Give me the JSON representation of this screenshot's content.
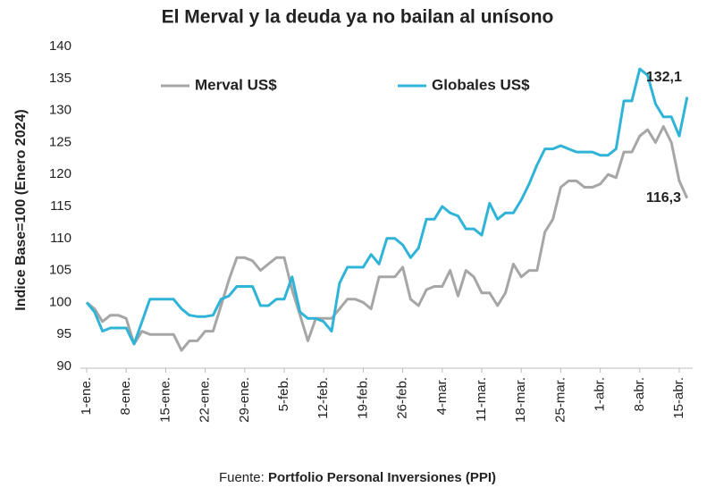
{
  "chart_data": {
    "type": "line",
    "title": "El Merval y la deuda ya no bailan al unísono",
    "y_label": "Indice Base=100 (Enero 2024)",
    "source_prefix": "Fuente:",
    "source": "Portfolio Personal Inversiones (PPI)",
    "categories": [
      "1-ene.",
      null,
      null,
      null,
      null,
      "8-ene.",
      null,
      null,
      null,
      null,
      "15-ene.",
      null,
      null,
      null,
      null,
      "22-ene.",
      null,
      null,
      null,
      null,
      "29-ene.",
      null,
      null,
      null,
      null,
      "5-feb.",
      null,
      null,
      null,
      null,
      "12-feb.",
      null,
      null,
      null,
      null,
      "19-feb.",
      null,
      null,
      null,
      null,
      "26-feb.",
      null,
      null,
      null,
      null,
      "4-mar.",
      null,
      null,
      null,
      null,
      "11-mar.",
      null,
      null,
      null,
      null,
      "18-mar.",
      null,
      null,
      null,
      null,
      "25-mar.",
      null,
      null,
      null,
      null,
      "1-abr.",
      null,
      null,
      null,
      null,
      "8-abr.",
      null,
      null,
      null,
      null,
      "15-abr.",
      null
    ],
    "series": [
      {
        "name": "Merval US$",
        "color": "#a6a6a6",
        "values": [
          100,
          99,
          97,
          98,
          98,
          97.5,
          93.5,
          95.5,
          95,
          95,
          95,
          95,
          92.5,
          94,
          94,
          95.5,
          95.5,
          99.5,
          103.5,
          107,
          107,
          106.5,
          105,
          106,
          107,
          107,
          102,
          98,
          94,
          97.5,
          97.5,
          97.5,
          99,
          100.5,
          100.5,
          100,
          99,
          104,
          104,
          104,
          105.5,
          100.5,
          99.5,
          102,
          102.5,
          102.5,
          105,
          101,
          105,
          104,
          101.5,
          101.5,
          99.5,
          101.5,
          106,
          104,
          105,
          105,
          111,
          113,
          118,
          119,
          119,
          118,
          118,
          118.5,
          120,
          119.5,
          123.5,
          123.5,
          126,
          127,
          125,
          127.5,
          125,
          119,
          116.3
        ],
        "value_labels": [
          null,
          null,
          null,
          null,
          null,
          null,
          null,
          null,
          null,
          null,
          null,
          null,
          null,
          null,
          null,
          null,
          null,
          null,
          null,
          null,
          null,
          null,
          null,
          null,
          null,
          null,
          null,
          null,
          null,
          null,
          null,
          null,
          null,
          null,
          null,
          null,
          null,
          null,
          null,
          null,
          null,
          null,
          null,
          null,
          null,
          null,
          null,
          null,
          null,
          null,
          null,
          null,
          null,
          null,
          null,
          null,
          null,
          null,
          null,
          null,
          null,
          null,
          null,
          null,
          null,
          null,
          null,
          null,
          null,
          null,
          null,
          null,
          null,
          null,
          null,
          null,
          "116,3"
        ]
      },
      {
        "name": "Globales US$",
        "color": "#2fb4d8",
        "values": [
          100,
          98.5,
          95.5,
          96,
          96,
          96,
          93.5,
          97,
          100.5,
          100.5,
          100.5,
          100.5,
          99,
          98,
          97.8,
          97.8,
          98,
          100.5,
          101,
          102.5,
          102.5,
          102.5,
          99.5,
          99.5,
          100.5,
          100.5,
          104,
          98.5,
          97.5,
          97.5,
          97,
          95.5,
          103,
          105.5,
          105.5,
          105.5,
          107.5,
          106,
          110,
          110,
          109,
          107,
          108.5,
          113,
          113,
          115,
          114,
          113.5,
          111.5,
          111.5,
          110.5,
          115.5,
          113,
          114,
          114,
          116,
          118.5,
          121.5,
          124,
          124,
          124.5,
          124,
          123.5,
          123.5,
          123.5,
          123,
          123,
          124,
          131.5,
          131.5,
          136.5,
          135.5,
          131,
          129,
          129,
          126,
          132.1
        ],
        "value_labels": [
          null,
          null,
          null,
          null,
          null,
          null,
          null,
          null,
          null,
          null,
          null,
          null,
          null,
          null,
          null,
          null,
          null,
          null,
          null,
          null,
          null,
          null,
          null,
          null,
          null,
          null,
          null,
          null,
          null,
          null,
          null,
          null,
          null,
          null,
          null,
          null,
          null,
          null,
          null,
          null,
          null,
          null,
          null,
          null,
          null,
          null,
          null,
          null,
          null,
          null,
          null,
          null,
          null,
          null,
          null,
          null,
          null,
          null,
          null,
          null,
          null,
          null,
          null,
          null,
          null,
          null,
          null,
          null,
          null,
          null,
          null,
          null,
          null,
          null,
          null,
          null,
          "132,1"
        ]
      }
    ],
    "ylim": [
      90,
      140
    ],
    "yticks": [
      90,
      95,
      100,
      105,
      110,
      115,
      120,
      125,
      130,
      135,
      140
    ],
    "grid": false
  }
}
